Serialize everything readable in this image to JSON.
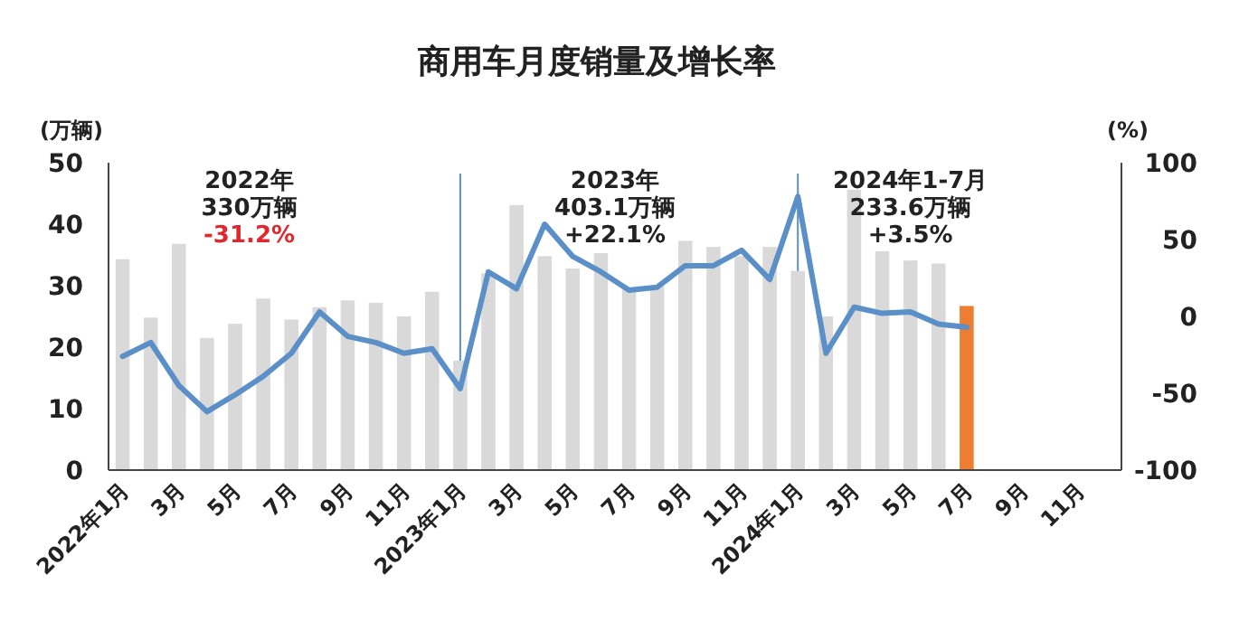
{
  "chart_data": {
    "type": "bar",
    "title": "商用车月度销量及增长率",
    "ylabel": "(万辆)",
    "y2label": "(%)",
    "categories": [
      "2022年1月",
      null,
      "3月",
      null,
      "5月",
      null,
      "7月",
      null,
      "9月",
      null,
      "11月",
      null,
      "2023年1月",
      null,
      "3月",
      null,
      "5月",
      null,
      "7月",
      null,
      "9月",
      null,
      "11月",
      null,
      "2024年1月",
      null,
      "3月",
      null,
      "5月",
      null,
      "7月",
      null,
      "9月",
      null,
      "11月",
      null
    ],
    "series": [
      {
        "values": [
          34.3,
          24.8,
          36.8,
          21.5,
          23.8,
          27.9,
          24.5,
          26.5,
          27.6,
          27.2,
          25.0,
          29.0,
          17.8,
          32.0,
          43.1,
          34.8,
          32.8,
          35.3,
          29.4,
          29.9,
          37.3,
          36.3,
          34.8,
          36.3,
          32.4,
          25.0,
          45.6,
          35.6,
          34.1,
          33.6,
          26.7,
          null,
          null,
          null,
          null,
          null
        ],
        "colors": [
          "#d9d9d9",
          "#d9d9d9",
          "#d9d9d9",
          "#d9d9d9",
          "#d9d9d9",
          "#d9d9d9",
          "#d9d9d9",
          "#d9d9d9",
          "#d9d9d9",
          "#d9d9d9",
          "#d9d9d9",
          "#d9d9d9",
          "#d9d9d9",
          "#d9d9d9",
          "#d9d9d9",
          "#d9d9d9",
          "#d9d9d9",
          "#d9d9d9",
          "#d9d9d9",
          "#d9d9d9",
          "#d9d9d9",
          "#d9d9d9",
          "#d9d9d9",
          "#d9d9d9",
          "#d9d9d9",
          "#d9d9d9",
          "#d9d9d9",
          "#d9d9d9",
          "#d9d9d9",
          "#d9d9d9",
          "#ed7d31",
          null,
          null,
          null,
          null,
          null
        ]
      },
      {
        "type": "line",
        "axis": "y2",
        "color": "#5b8fc7",
        "values": [
          -26,
          -17,
          -45,
          -62,
          -51,
          -39,
          -24,
          3,
          -13,
          -17,
          -24,
          -21,
          -47,
          29,
          18,
          60,
          39,
          29,
          17,
          19,
          33,
          33,
          43,
          24,
          78,
          -24,
          6,
          2,
          3,
          -5,
          -7,
          null,
          null,
          null,
          null,
          null
        ]
      }
    ],
    "ylim": [
      0,
      50
    ],
    "yticks": [
      0,
      10,
      20,
      30,
      40,
      50
    ],
    "y2lim": [
      -100,
      100
    ],
    "y2ticks": [
      -100,
      -50,
      0,
      50,
      100
    ],
    "ref_lines": [
      {
        "axis": "x",
        "value": "2023年1月",
        "color": "#5b8fc7"
      },
      {
        "axis": "x",
        "value": "2024年1月",
        "color": "#5b8fc7"
      }
    ],
    "annotations": [
      "2022年\n330万辆\n-31.2%",
      "2023年\n403.1万辆\n+22.1%",
      "2024年1-7月\n233.6万辆\n+3.5%"
    ],
    "grid": false
  }
}
